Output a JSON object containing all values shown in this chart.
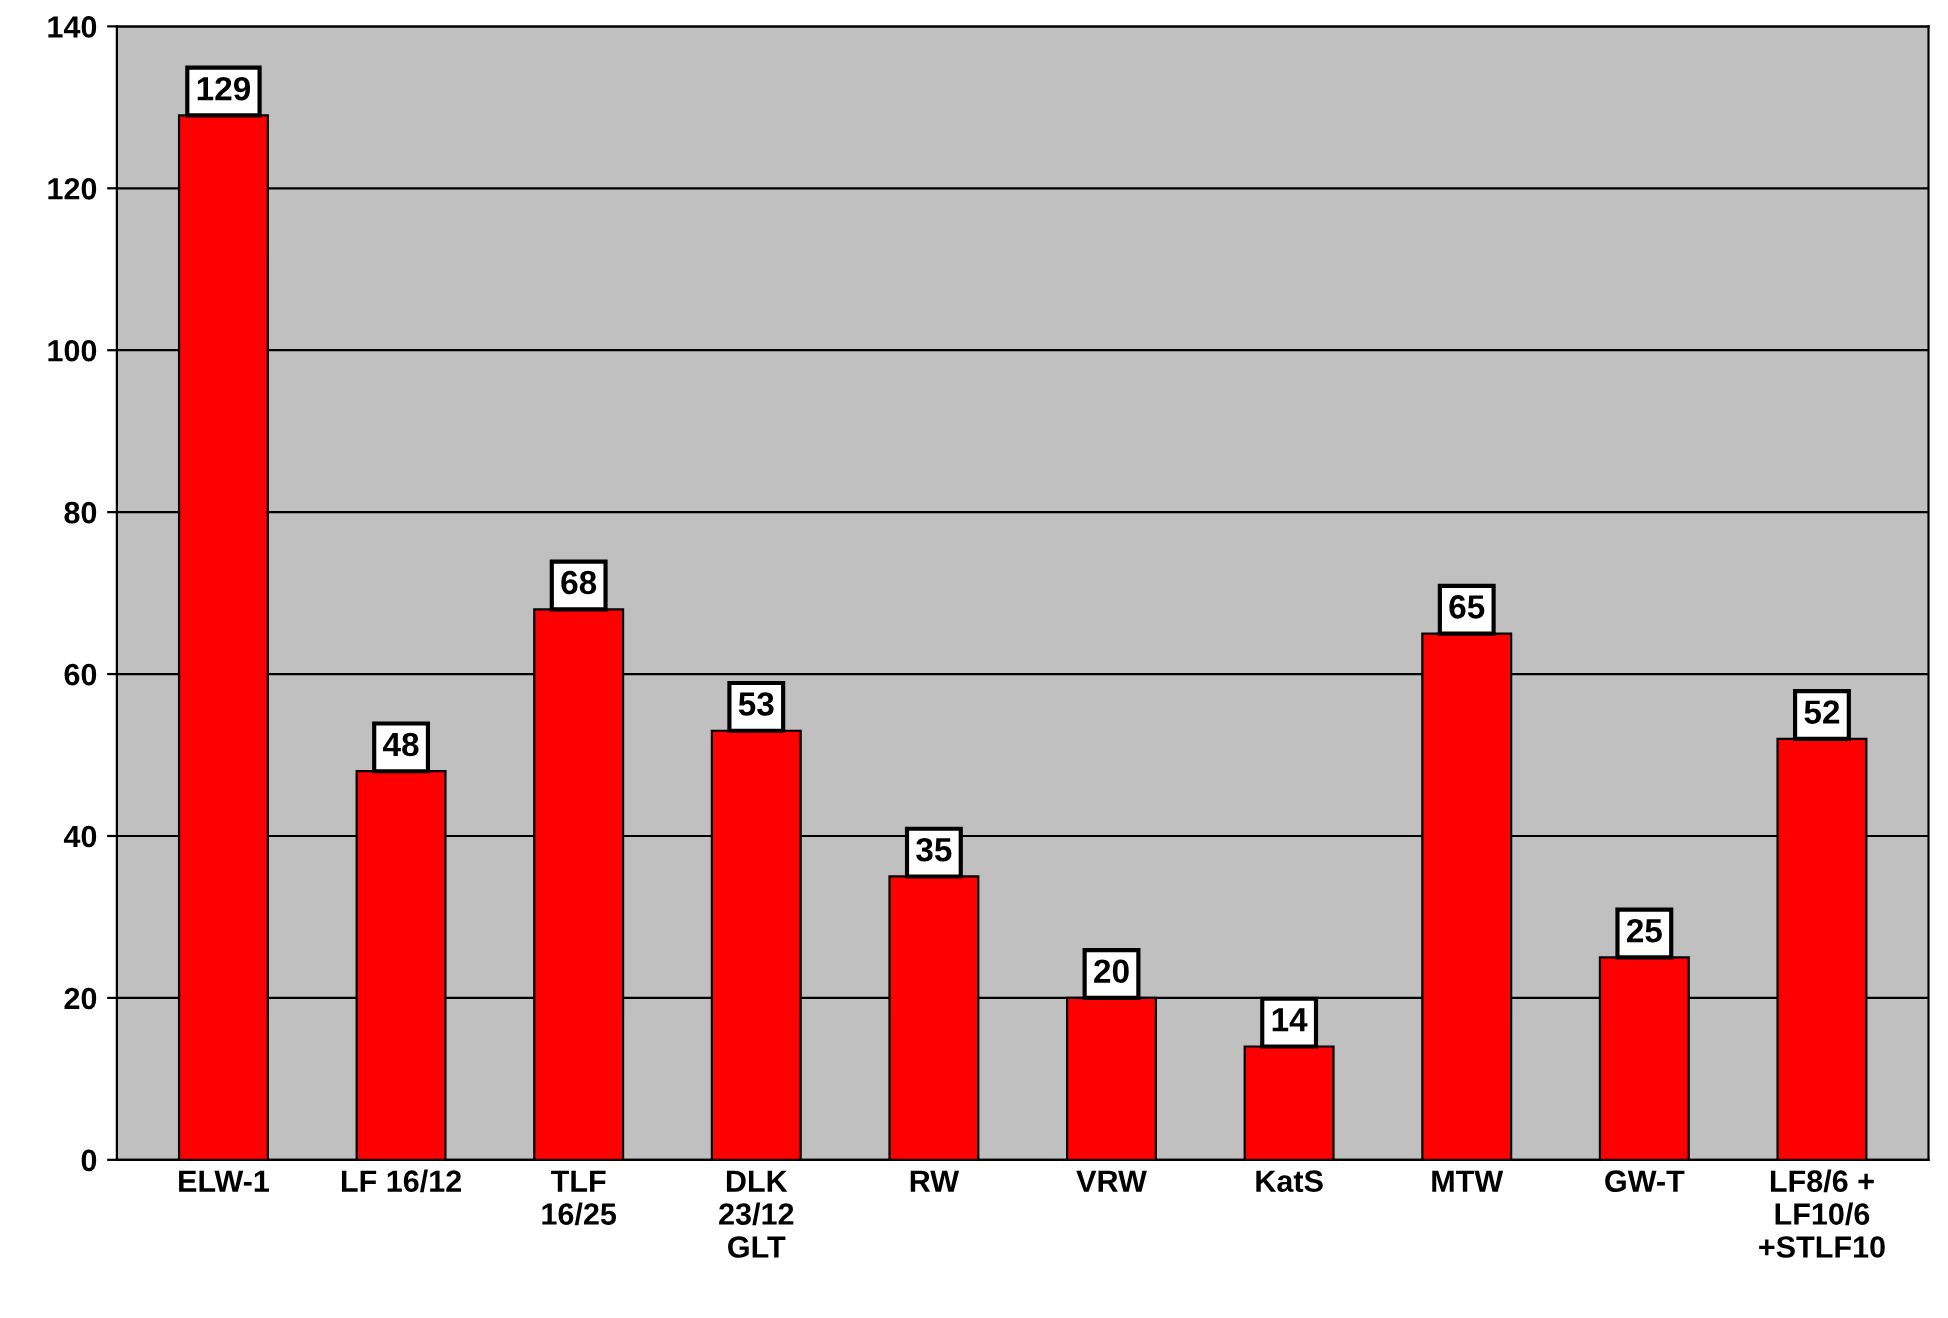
{
  "chart_data": {
    "type": "bar",
    "categories": [
      "ELW-1",
      "LF 16/12",
      "TLF\n16/25",
      "DLK\n23/12\nGLT",
      "RW",
      "VRW",
      "KatS",
      "MTW",
      "GW-T",
      "LF8/6 +\nLF10/6\n+STLF10"
    ],
    "values": [
      129,
      48,
      68,
      53,
      35,
      20,
      14,
      65,
      25,
      52
    ],
    "color": "#ff0000",
    "ylim": [
      0,
      140
    ],
    "yticks": [
      0,
      20,
      40,
      60,
      80,
      100,
      120,
      140
    ],
    "grid": "y",
    "data_labels": true
  }
}
